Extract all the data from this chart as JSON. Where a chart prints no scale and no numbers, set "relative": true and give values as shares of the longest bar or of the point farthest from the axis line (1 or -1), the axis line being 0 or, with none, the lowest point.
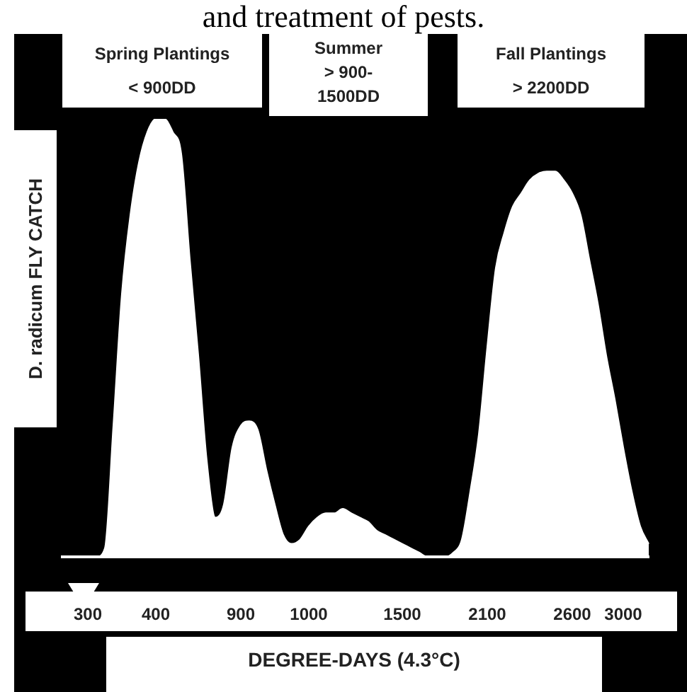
{
  "chart_data": {
    "type": "area",
    "relative": true,
    "annotations": [
      "and treatment of pests.",
      "Spring Plantings\n< 900DD",
      "Summer\n> 900-\n1500DD",
      "Fall Plantings\n> 2200DD"
    ],
    "ylabel": "D. radicum FLY CATCH",
    "xlabel": "DEGREE-DAYS (4.3°C)",
    "categories": [
      null,
      null,
      null,
      "300",
      null,
      null,
      null,
      null,
      null,
      null,
      null,
      "400",
      null,
      null,
      null,
      null,
      null,
      null,
      null,
      null,
      null,
      "900",
      null,
      null,
      null,
      null,
      null,
      null,
      null,
      "1000",
      null,
      null,
      null,
      null,
      null,
      null,
      null,
      null,
      null,
      null,
      "1500",
      null,
      null,
      null,
      null,
      null,
      null,
      null,
      null,
      null,
      "2100",
      null,
      null,
      null,
      null,
      null,
      null,
      null,
      null,
      null,
      "2600",
      null,
      null,
      null,
      null,
      null,
      "3000",
      null,
      null,
      null
    ],
    "series": [
      {
        "color": "#ffffff",
        "values": [
          0,
          0,
          0,
          0,
          0,
          0.02,
          0.3,
          0.6,
          0.78,
          0.9,
          0.97,
          1,
          1,
          0.97,
          0.92,
          0.68,
          0.46,
          0.22,
          0.09,
          0.12,
          0.25,
          0.3,
          0.31,
          0.29,
          0.2,
          0.12,
          0.05,
          0.03,
          0.04,
          0.07,
          0.09,
          0.1,
          0.1,
          0.11,
          0.1,
          0.09,
          0.08,
          0.06,
          0.05,
          0.04,
          0.03,
          0.02,
          0.01,
          0,
          0,
          0,
          0.01,
          0.04,
          0.15,
          0.28,
          0.48,
          0.66,
          0.74,
          0.8,
          0.83,
          0.86,
          0.875,
          0.88,
          0.88,
          0.86,
          0.83,
          0.78,
          0.68,
          0.58,
          0.46,
          0.36,
          0.25,
          0.15,
          0.07,
          0.03
        ]
      }
    ]
  }
}
